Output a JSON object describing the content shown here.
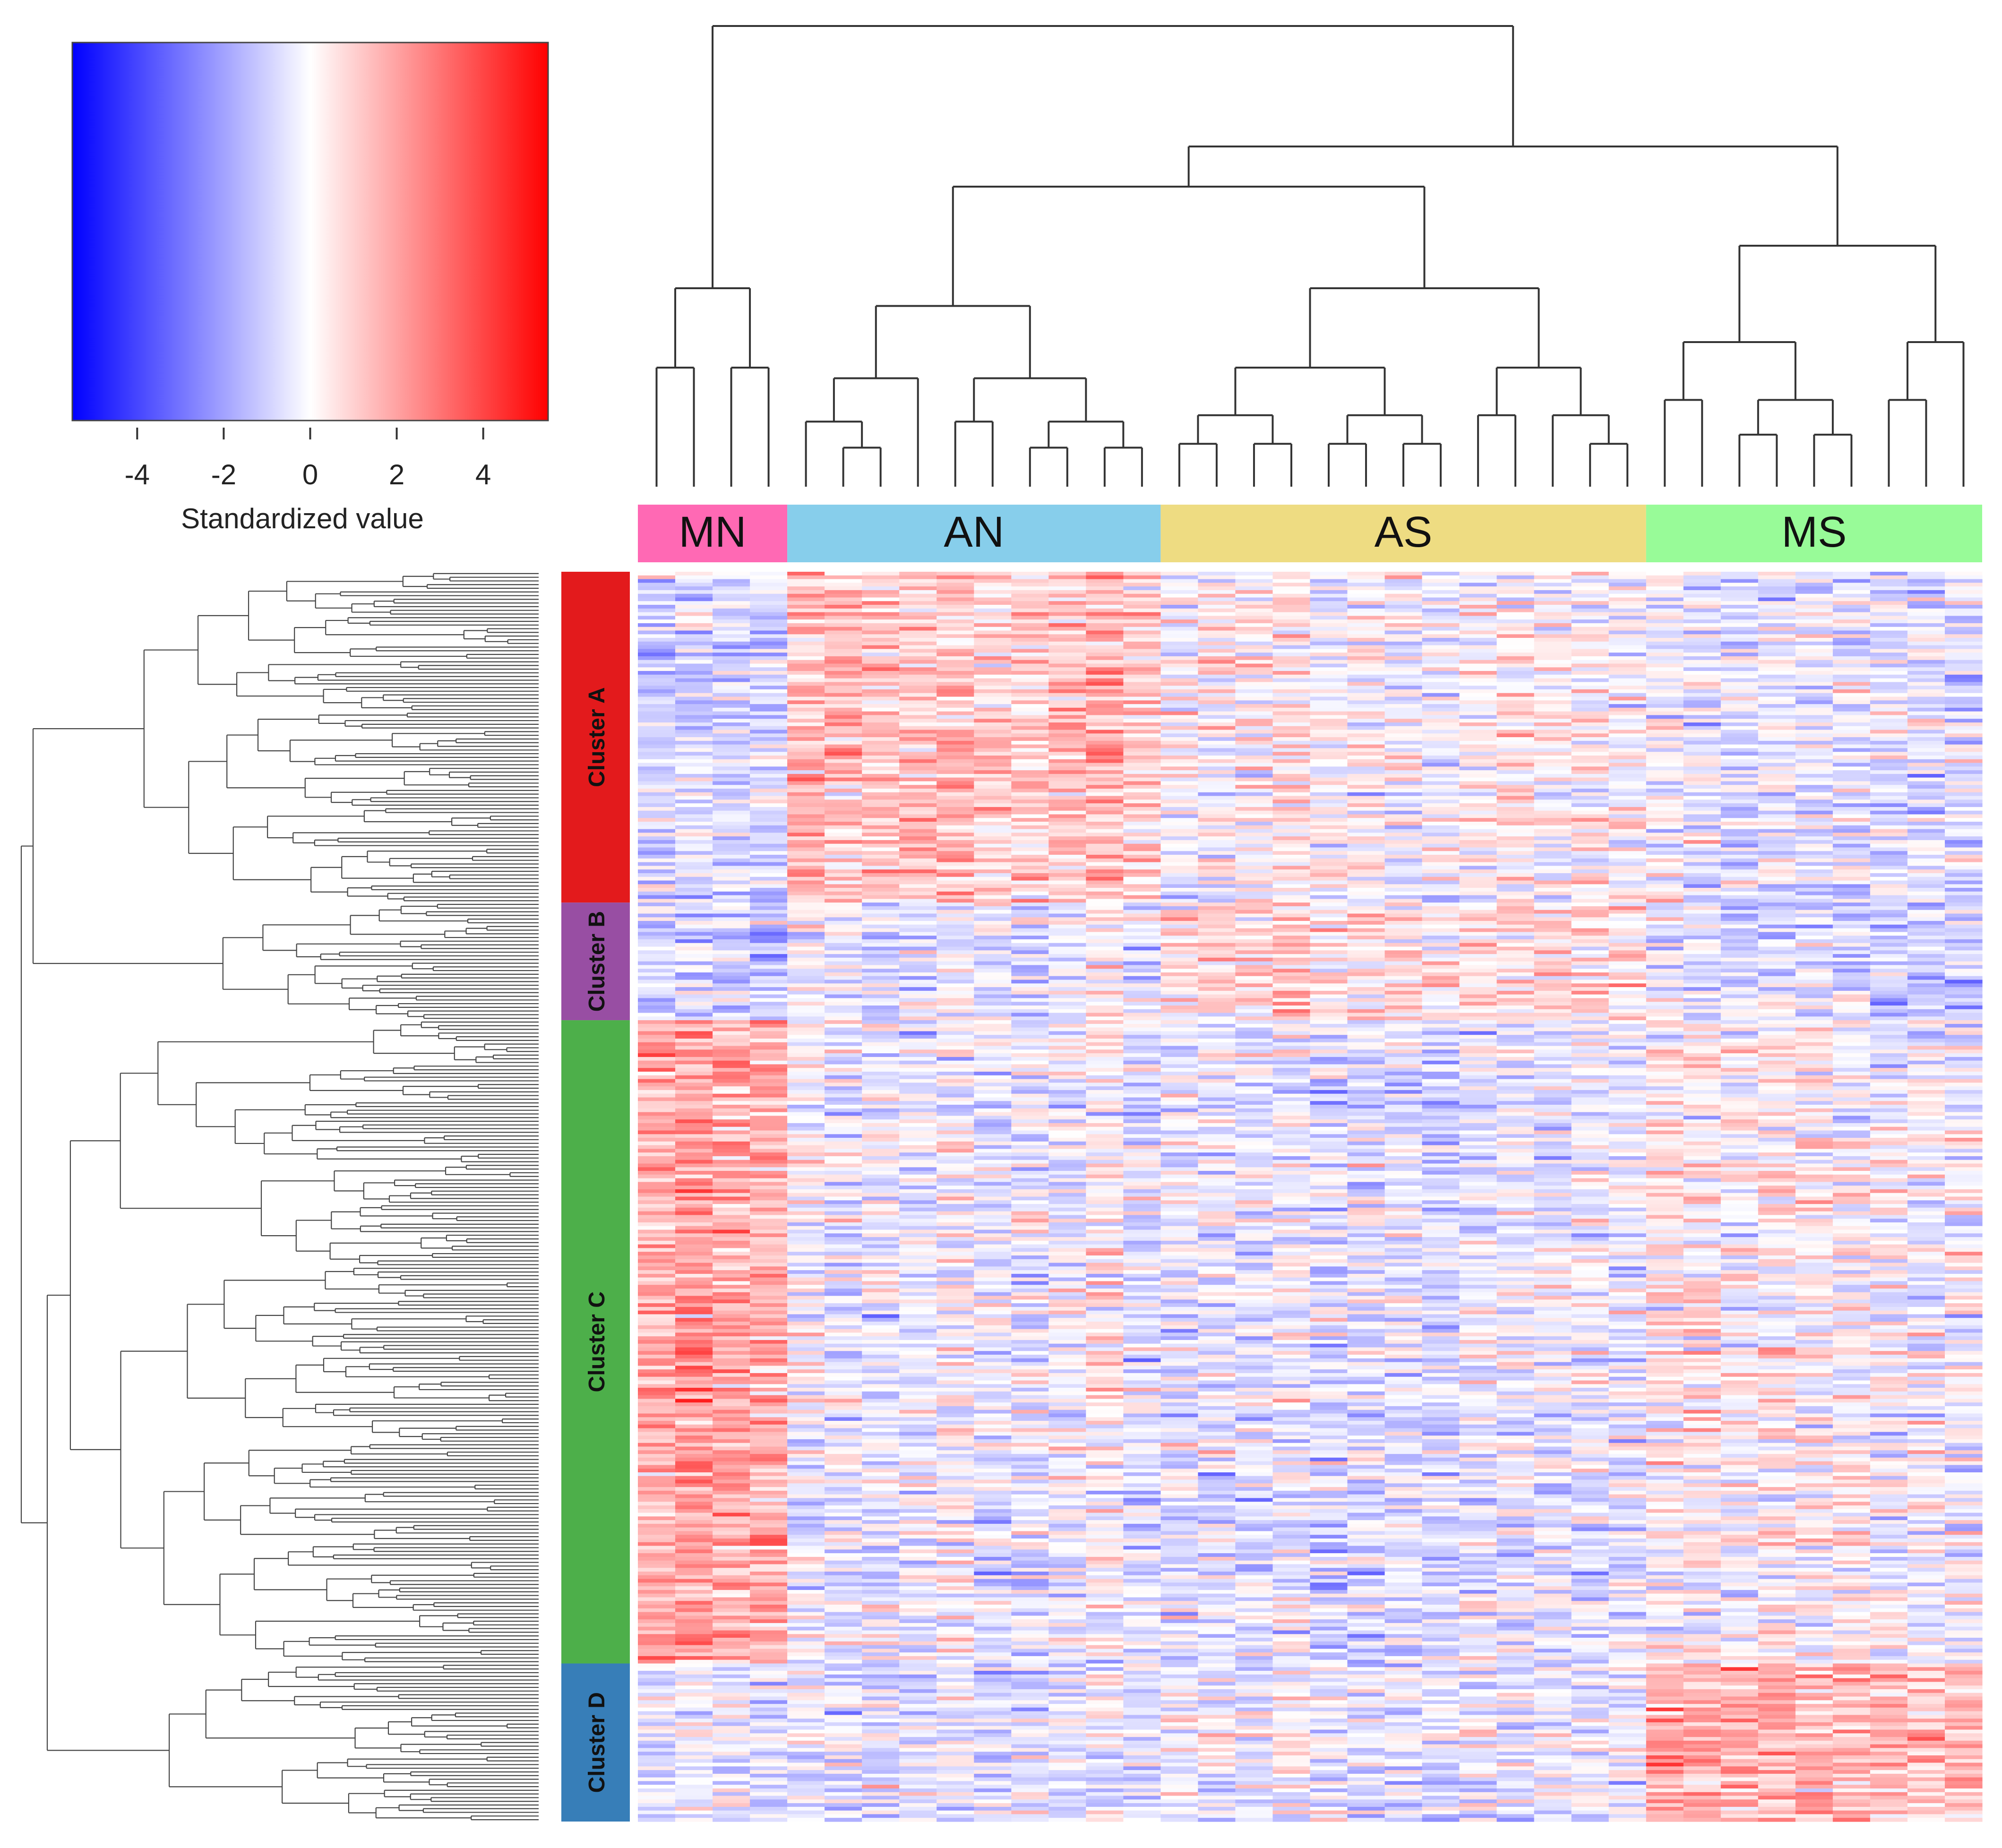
{
  "chart_data": {
    "type": "heatmap",
    "title": "",
    "color_key": {
      "title": "Standardized value",
      "ticks": [
        -4,
        -2,
        0,
        2,
        4
      ],
      "range": [
        -5.5,
        5.5
      ],
      "colors": {
        "low": "#0000ff",
        "mid": "#ffffff",
        "high": "#ff0000"
      }
    },
    "column_groups": [
      {
        "label": "MN",
        "color": "#ff69b4",
        "n_samples": 4
      },
      {
        "label": "AN",
        "color": "#87ceeb",
        "n_samples": 10
      },
      {
        "label": "AS",
        "color": "#eedc82",
        "n_samples": 13
      },
      {
        "label": "MS",
        "color": "#98fb98",
        "n_samples": 9
      }
    ],
    "row_clusters": [
      {
        "label": "Cluster A",
        "color": "#e31a1c",
        "n_rows": 90,
        "mean_by_group": {
          "MN": -0.9,
          "AN": 1.3,
          "AS": 0.1,
          "MS": -0.4
        }
      },
      {
        "label": "Cluster B",
        "color": "#984ea3",
        "n_rows": 32,
        "mean_by_group": {
          "MN": -1.0,
          "AN": -0.2,
          "AS": 0.7,
          "MS": -0.6
        }
      },
      {
        "label": "Cluster C",
        "color": "#4daf4a",
        "n_rows": 175,
        "mean_by_group": {
          "MN": 1.8,
          "AN": -0.2,
          "AS": -0.5,
          "MS": 0.2
        }
      },
      {
        "label": "Cluster D",
        "color": "#377eb8",
        "n_rows": 43,
        "mean_by_group": {
          "MN": -0.4,
          "AN": -0.4,
          "AS": -0.3,
          "MS": 1.7
        }
      }
    ],
    "column_dendrogram_note": "hierarchical clustering of 36 samples",
    "row_dendrogram_note": "hierarchical clustering of 340 features"
  }
}
